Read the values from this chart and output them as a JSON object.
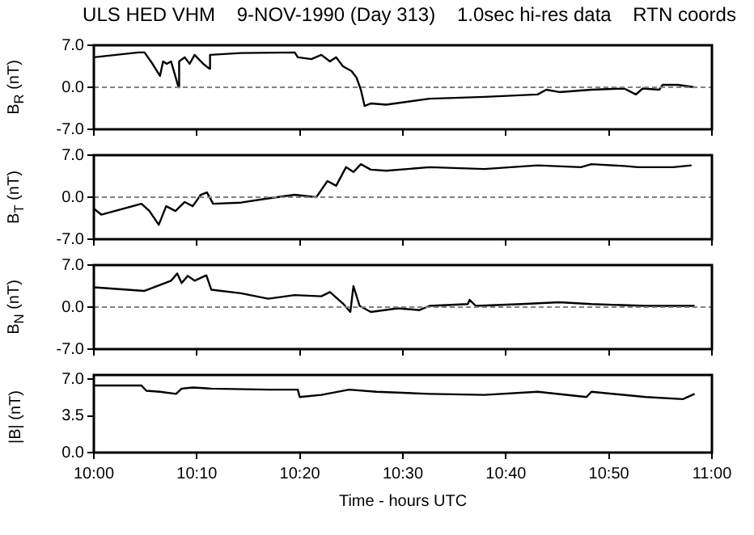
{
  "chart_data": [
    {
      "type": "line",
      "title": "ULS HED VHM    9-NOV-1990 (Day 313)    1.0sec hi-res data    RTN coords",
      "ylabel": "B$_{R}$ (nT)",
      "xlim": [
        10,
        11
      ],
      "xticks": [
        {
          "value": 10,
          "label": null
        },
        {
          "value": 10.1667,
          "label": null
        },
        {
          "value": 10.3333,
          "label": null
        },
        {
          "value": 10.5,
          "label": null
        },
        {
          "value": 10.6667,
          "label": null
        },
        {
          "value": 10.8333,
          "label": null
        },
        {
          "value": 11,
          "label": null
        }
      ],
      "ylim": [
        -7,
        7
      ],
      "yticks": [
        {
          "value": -7,
          "label": "-7.0"
        },
        {
          "value": 0,
          "label": "0.0"
        },
        {
          "value": 7,
          "label": "7.0"
        }
      ],
      "tick_labels": "y",
      "grid": false,
      "marker": "none",
      "ref_lines": [
        {
          "axis": "y",
          "value": 0,
          "line_style": "dashed",
          "color": "#808080"
        }
      ],
      "series": [
        {
          "color": "#000000",
          "x": [
            10.0,
            10.072,
            10.082,
            10.095,
            10.107,
            10.112,
            10.118,
            10.125,
            10.137,
            10.138,
            10.147,
            10.155,
            10.163,
            10.177,
            10.187,
            10.188,
            10.238,
            10.325,
            10.33,
            10.352,
            10.368,
            10.382,
            10.392,
            10.403,
            10.417,
            10.425,
            10.432,
            10.438,
            10.448,
            10.473,
            10.543,
            10.632,
            10.718,
            10.732,
            10.753,
            10.805,
            10.858,
            10.877,
            10.888,
            10.915,
            10.92,
            10.945,
            10.972
          ],
          "values": [
            5.0,
            5.8,
            5.8,
            3.9,
            1.9,
            4.3,
            3.9,
            4.3,
            0.0,
            4.3,
            5.0,
            3.9,
            5.4,
            3.9,
            3.1,
            5.4,
            5.7,
            5.8,
            5.0,
            4.7,
            5.4,
            4.3,
            5.0,
            3.5,
            2.7,
            1.6,
            -0.4,
            -3.1,
            -2.7,
            -2.9,
            -1.9,
            -1.6,
            -1.2,
            -0.4,
            -0.8,
            -0.4,
            -0.2,
            -1.2,
            -0.2,
            -0.4,
            0.4,
            0.4,
            0.0
          ]
        }
      ]
    },
    {
      "type": "line",
      "ylabel": "B$_{T}$ (nT)",
      "xlim": [
        10,
        11
      ],
      "xticks": [
        {
          "value": 10,
          "label": null
        },
        {
          "value": 10.1667,
          "label": null
        },
        {
          "value": 10.3333,
          "label": null
        },
        {
          "value": 10.5,
          "label": null
        },
        {
          "value": 10.6667,
          "label": null
        },
        {
          "value": 10.8333,
          "label": null
        },
        {
          "value": 11,
          "label": null
        }
      ],
      "ylim": [
        -7,
        7
      ],
      "yticks": [
        {
          "value": -7,
          "label": "-7.0"
        },
        {
          "value": 0,
          "label": "0.0"
        },
        {
          "value": 7,
          "label": "7.0"
        }
      ],
      "tick_labels": "y",
      "grid": false,
      "marker": "none",
      "ref_lines": [
        {
          "axis": "y",
          "value": 0,
          "line_style": "dashed",
          "color": "#808080"
        }
      ],
      "series": [
        {
          "color": "#000000",
          "x": [
            10.0,
            10.012,
            10.077,
            10.09,
            10.105,
            10.117,
            10.132,
            10.147,
            10.16,
            10.173,
            10.183,
            10.193,
            10.238,
            10.282,
            10.325,
            10.36,
            10.378,
            10.392,
            10.408,
            10.42,
            10.432,
            10.448,
            10.473,
            10.543,
            10.632,
            10.718,
            10.788,
            10.805,
            10.858,
            10.88,
            10.937,
            10.967
          ],
          "values": [
            -1.9,
            -2.9,
            -1.1,
            -2.3,
            -4.6,
            -1.5,
            -2.3,
            -0.8,
            -1.5,
            0.4,
            0.8,
            -1.1,
            -0.9,
            -0.2,
            0.4,
            0.0,
            2.7,
            1.9,
            5.0,
            4.2,
            5.5,
            4.6,
            4.4,
            5.0,
            4.7,
            5.3,
            5.0,
            5.5,
            5.2,
            5.0,
            5.0,
            5.3
          ]
        }
      ]
    },
    {
      "type": "line",
      "ylabel": "B$_{N}$ (nT)",
      "xlim": [
        10,
        11
      ],
      "xticks": [
        {
          "value": 10,
          "label": null
        },
        {
          "value": 10.1667,
          "label": null
        },
        {
          "value": 10.3333,
          "label": null
        },
        {
          "value": 10.5,
          "label": null
        },
        {
          "value": 10.6667,
          "label": null
        },
        {
          "value": 10.8333,
          "label": null
        },
        {
          "value": 11,
          "label": null
        }
      ],
      "ylim": [
        -7,
        7
      ],
      "yticks": [
        {
          "value": -7,
          "label": "-7.0"
        },
        {
          "value": 0,
          "label": "0.0"
        },
        {
          "value": 7,
          "label": "7.0"
        }
      ],
      "tick_labels": "y",
      "grid": false,
      "marker": "none",
      "ref_lines": [
        {
          "axis": "y",
          "value": 0,
          "line_style": "dashed",
          "color": "#808080"
        }
      ],
      "series": [
        {
          "color": "#000000",
          "x": [
            10.0,
            10.082,
            10.107,
            10.125,
            10.135,
            10.142,
            10.152,
            10.163,
            10.182,
            10.19,
            10.238,
            10.282,
            10.325,
            10.368,
            10.382,
            10.403,
            10.415,
            10.42,
            10.43,
            10.448,
            10.492,
            10.527,
            10.543,
            10.605,
            10.608,
            10.618,
            10.692,
            10.753,
            10.805,
            10.893,
            10.972
          ],
          "values": [
            3.3,
            2.7,
            3.7,
            4.4,
            5.6,
            4.0,
            5.2,
            4.4,
            5.3,
            2.9,
            2.3,
            1.4,
            2.0,
            1.8,
            2.5,
            0.6,
            -0.8,
            3.5,
            0.2,
            -0.8,
            -0.2,
            -0.5,
            0.2,
            0.5,
            1.2,
            0.2,
            0.5,
            0.8,
            0.5,
            0.2,
            0.2
          ]
        }
      ]
    },
    {
      "type": "line",
      "ylabel": "|B| (nT)",
      "xlabel": "Time - hours UTC",
      "xlim": [
        10,
        11
      ],
      "xticks": [
        {
          "value": 10,
          "label": "10:00"
        },
        {
          "value": 10.1667,
          "label": "10:10"
        },
        {
          "value": 10.3333,
          "label": "10:20"
        },
        {
          "value": 10.5,
          "label": "10:30"
        },
        {
          "value": 10.6667,
          "label": "10:40"
        },
        {
          "value": 10.8333,
          "label": "10:50"
        },
        {
          "value": 11,
          "label": "11:00"
        }
      ],
      "ylim": [
        0,
        7.4
      ],
      "yticks": [
        {
          "value": 0,
          "label": "0.0"
        },
        {
          "value": 3.5,
          "label": "3.5"
        },
        {
          "value": 7,
          "label": "7.0"
        }
      ],
      "grid": false,
      "marker": "none",
      "series": [
        {
          "color": "#000000",
          "x": [
            10.0,
            10.077,
            10.085,
            10.107,
            10.133,
            10.142,
            10.16,
            10.19,
            10.282,
            10.33,
            10.333,
            10.368,
            10.413,
            10.457,
            10.543,
            10.632,
            10.718,
            10.797,
            10.805,
            10.893,
            10.953,
            10.972
          ],
          "values": [
            6.4,
            6.4,
            5.9,
            5.8,
            5.6,
            6.1,
            6.2,
            6.1,
            6.0,
            6.0,
            5.3,
            5.5,
            6.0,
            5.8,
            5.6,
            5.5,
            5.8,
            5.3,
            5.8,
            5.3,
            5.1,
            5.6
          ]
        }
      ]
    }
  ]
}
